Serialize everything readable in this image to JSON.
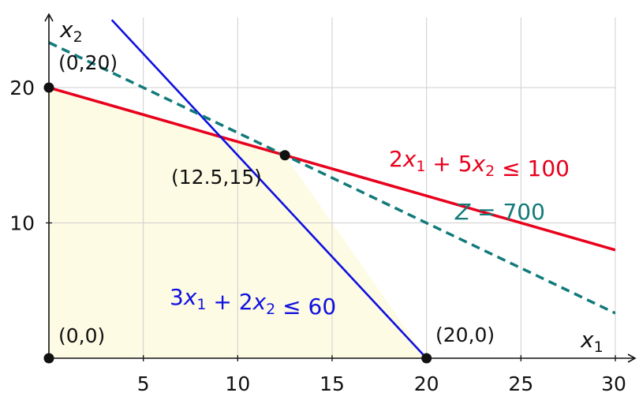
{
  "chart_data": {
    "type": "line",
    "xlim": [
      0,
      30
    ],
    "ylim": [
      0,
      25
    ],
    "xticks": [
      5,
      10,
      15,
      20,
      25,
      30
    ],
    "yticks": [
      10,
      20
    ],
    "xlabel": "x1",
    "ylabel": "x2",
    "grid": true,
    "feasible_region": {
      "vertices": [
        [
          0,
          0
        ],
        [
          0,
          20
        ],
        [
          12.5,
          15
        ],
        [
          20,
          0
        ]
      ],
      "color": "#fdfbe3"
    },
    "series": [
      {
        "name": "2x1 + 5x2 ≤ 100",
        "color": "#e8001c",
        "style": "solid",
        "x": [
          0,
          30
        ],
        "y": [
          20,
          8
        ]
      },
      {
        "name": "3x1 + 2x2 ≤ 60",
        "color": "#1010e0",
        "style": "solid",
        "x": [
          3.33,
          20
        ],
        "y": [
          25,
          0
        ]
      },
      {
        "name": "Z = 700",
        "color": "#127a7a",
        "style": "dashed",
        "x": [
          0,
          30
        ],
        "y": [
          23.33,
          3.33
        ]
      }
    ],
    "points": [
      {
        "x": 0,
        "y": 0,
        "label": "(0,0)"
      },
      {
        "x": 0,
        "y": 20,
        "label": "(0,20)"
      },
      {
        "x": 12.5,
        "y": 15,
        "label": "(12.5,15)"
      },
      {
        "x": 20,
        "y": 0,
        "label": "(20,0)"
      }
    ]
  }
}
